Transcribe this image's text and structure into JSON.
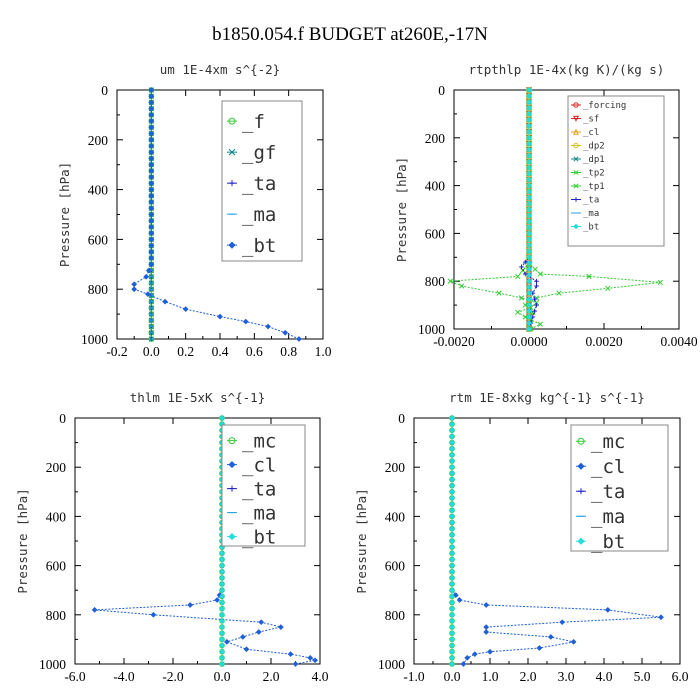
{
  "figure_title": "b1850.054.f  BUDGET at260E,-17N",
  "colors": {
    "green": "#33cc33",
    "teal": "#118888",
    "blue": "#1f5fd8",
    "navy": "#2222cc",
    "cyan": "#22a0e8",
    "aqua": "#22dddd",
    "red": "#dd2222",
    "orange": "#e8a020",
    "yellow": "#d8c020"
  },
  "chart_data": [
    {
      "type": "line",
      "title": "um  1E-4xm s^{-2}",
      "ylabel": "Pressure [hPa]",
      "xlim": [
        -0.2,
        1.0
      ],
      "ylim": [
        1000,
        0
      ],
      "xticks": [
        "-0.2",
        "0.0",
        "0.2",
        "0.4",
        "0.6",
        "0.8",
        "1.0"
      ],
      "yticks": [
        "0",
        "200",
        "400",
        "600",
        "800",
        "1000"
      ],
      "legend": "top-right",
      "series": [
        {
          "name": "_f",
          "color": "#33cc33",
          "marker": "circle",
          "x": [
            0,
            0,
            0,
            0,
            0,
            0,
            0,
            0,
            0,
            0,
            0
          ],
          "y": [
            0,
            100,
            200,
            300,
            400,
            500,
            600,
            700,
            800,
            900,
            1000
          ]
        },
        {
          "name": "_gf",
          "color": "#118888",
          "marker": "x",
          "x": [
            0,
            0,
            0,
            0,
            0,
            0,
            0,
            0,
            0,
            0,
            0
          ],
          "y": [
            0,
            100,
            200,
            300,
            400,
            500,
            600,
            700,
            800,
            900,
            1000
          ]
        },
        {
          "name": "_ta",
          "color": "#2222cc",
          "marker": "plus",
          "x": [
            0,
            0,
            0,
            0,
            0,
            0,
            0,
            0,
            0,
            0,
            0
          ],
          "y": [
            0,
            100,
            200,
            300,
            400,
            500,
            600,
            700,
            800,
            900,
            1000
          ]
        },
        {
          "name": "_ma",
          "color": "#22a0e8",
          "marker": "dash",
          "x": [
            0,
            0,
            0,
            0,
            0,
            0,
            0,
            0,
            0,
            0,
            0
          ],
          "y": [
            0,
            100,
            200,
            300,
            400,
            500,
            600,
            700,
            800,
            900,
            1000
          ]
        },
        {
          "name": "_bt",
          "color": "#1f5fd8",
          "marker": "diamond",
          "x": [
            0,
            0,
            0,
            0,
            0,
            -0.03,
            -0.1,
            -0.1,
            -0.02,
            0.08,
            0.2,
            0.4,
            0.55,
            0.68,
            0.78,
            0.86
          ],
          "y": [
            0,
            200,
            400,
            600,
            700,
            750,
            780,
            800,
            820,
            850,
            880,
            910,
            930,
            950,
            975,
            1000
          ]
        }
      ]
    },
    {
      "type": "line",
      "title": "rtpthlp  1E-4x(kg K)/(kg s)",
      "ylabel": "Pressure [hPa]",
      "xlim": [
        -0.002,
        0.004
      ],
      "ylim": [
        1000,
        0
      ],
      "xticks": [
        "-0.0020",
        "0.0000",
        "0.0020",
        "0.0040"
      ],
      "yticks": [
        "0",
        "200",
        "400",
        "600",
        "800",
        "1000"
      ],
      "legend": "top-right",
      "series": [
        {
          "name": "_forcing",
          "color": "#dd2222",
          "marker": "circle",
          "x": [
            0,
            0,
            0,
            0,
            0,
            0,
            0,
            0,
            0,
            0,
            0
          ],
          "y": [
            0,
            100,
            200,
            300,
            400,
            500,
            600,
            700,
            800,
            900,
            1000
          ]
        },
        {
          "name": "_sf",
          "color": "#dd2222",
          "marker": "triangle-down",
          "x": [
            0,
            0,
            0,
            0,
            0,
            0,
            0,
            0,
            0,
            0,
            0
          ],
          "y": [
            0,
            100,
            200,
            300,
            400,
            500,
            600,
            700,
            800,
            900,
            1000
          ]
        },
        {
          "name": "_cl",
          "color": "#e8a020",
          "marker": "triangle",
          "x": [
            0,
            0,
            0,
            0,
            0,
            0,
            0,
            0,
            0,
            0,
            0
          ],
          "y": [
            0,
            100,
            200,
            300,
            400,
            500,
            600,
            700,
            800,
            900,
            1000
          ]
        },
        {
          "name": "_dp2",
          "color": "#d8c020",
          "marker": "circle",
          "x": [
            0,
            0,
            0,
            0,
            0,
            0,
            0,
            0,
            0,
            0,
            0
          ],
          "y": [
            0,
            100,
            200,
            300,
            400,
            500,
            600,
            700,
            800,
            900,
            1000
          ]
        },
        {
          "name": "_dp1",
          "color": "#118888",
          "marker": "x",
          "x": [
            0,
            0,
            0,
            0,
            0,
            0,
            0,
            0,
            0,
            0,
            0
          ],
          "y": [
            0,
            100,
            200,
            300,
            400,
            500,
            600,
            700,
            800,
            900,
            1000
          ]
        },
        {
          "name": "_tp2",
          "color": "#33cc33",
          "marker": "x",
          "x": [
            0,
            0,
            0,
            0,
            0,
            -3e-05,
            -0.0003,
            -0.0021,
            -0.0018,
            -0.0008,
            -0.0002,
            0.0002,
            5e-05,
            -0.0003,
            -0.0001,
            0.0003,
            5e-05
          ],
          "y": [
            0,
            200,
            400,
            600,
            700,
            730,
            780,
            800,
            820,
            850,
            870,
            890,
            910,
            930,
            950,
            980,
            1000
          ]
        },
        {
          "name": "_tp1",
          "color": "#33cc33",
          "marker": "x",
          "x": [
            0,
            0,
            0,
            0,
            0,
            3e-05,
            0.0003,
            0.0016,
            0.0035,
            0.0021,
            0.0008,
            0.0002,
            -0.0001,
            0.0001,
            5e-05,
            0
          ],
          "y": [
            0,
            200,
            400,
            600,
            700,
            730,
            770,
            780,
            805,
            830,
            850,
            870,
            900,
            930,
            960,
            1000
          ]
        },
        {
          "name": "_ta",
          "color": "#2222cc",
          "marker": "plus",
          "x": [
            0,
            0,
            0,
            0,
            0,
            -0.0002,
            -0.0001,
            0.0002,
            0.0002,
            0.0001,
            0.0002,
            0.0001,
            0
          ],
          "y": [
            0,
            200,
            400,
            600,
            700,
            740,
            770,
            800,
            820,
            850,
            900,
            950,
            1000
          ]
        },
        {
          "name": "_ma",
          "color": "#22a0e8",
          "marker": "dash",
          "x": [
            0,
            0,
            0,
            0,
            0,
            0,
            0,
            0,
            0,
            0,
            0
          ],
          "y": [
            0,
            100,
            200,
            300,
            400,
            500,
            600,
            700,
            800,
            900,
            1000
          ]
        },
        {
          "name": "_bt",
          "color": "#22dddd",
          "marker": "diamond",
          "x": [
            0,
            0,
            0,
            0,
            0,
            0,
            0,
            0,
            0,
            0,
            0
          ],
          "y": [
            0,
            100,
            200,
            300,
            400,
            500,
            600,
            700,
            800,
            900,
            1000
          ]
        }
      ]
    },
    {
      "type": "line",
      "title": "thlm  1E-5xK s^{-1}",
      "ylabel": "Pressure [hPa]",
      "xlim": [
        -6.0,
        4.0
      ],
      "ylim": [
        1000,
        0
      ],
      "xticks": [
        "-6.0",
        "-4.0",
        "-2.0",
        "0.0",
        "2.0",
        "4.0"
      ],
      "yticks": [
        "0",
        "200",
        "400",
        "600",
        "800",
        "1000"
      ],
      "legend": "top-right",
      "series": [
        {
          "name": "_mc",
          "color": "#33cc33",
          "marker": "circle",
          "x": [
            0,
            0,
            0,
            0,
            0,
            0,
            0,
            0,
            0,
            0,
            0
          ],
          "y": [
            0,
            100,
            200,
            300,
            400,
            500,
            600,
            700,
            800,
            900,
            1000
          ]
        },
        {
          "name": "_cl",
          "color": "#1f5fd8",
          "marker": "diamond",
          "x": [
            0,
            0,
            0,
            0,
            0,
            -0.2,
            -1.3,
            -5.2,
            -2.8,
            1.6,
            2.4,
            1.5,
            0.2,
            1.0,
            2.8,
            3.6,
            3.8,
            3.0
          ],
          "y": [
            0,
            200,
            400,
            600,
            700,
            740,
            760,
            780,
            800,
            830,
            850,
            870,
            910,
            940,
            960,
            975,
            985,
            1000
          ]
        },
        {
          "name": "_ta",
          "color": "#2222cc",
          "marker": "plus",
          "x": [
            0,
            0,
            0,
            0,
            0,
            0,
            0,
            0,
            0,
            0,
            0
          ],
          "y": [
            0,
            100,
            200,
            300,
            400,
            500,
            600,
            700,
            800,
            900,
            1000
          ]
        },
        {
          "name": "_ma",
          "color": "#22a0e8",
          "marker": "dash",
          "x": [
            0,
            0,
            0,
            0,
            0,
            0,
            0,
            0,
            0,
            0,
            0
          ],
          "y": [
            0,
            100,
            200,
            300,
            400,
            500,
            600,
            700,
            800,
            900,
            1000
          ]
        },
        {
          "name": "_bt",
          "color": "#22dddd",
          "marker": "diamond",
          "x": [
            0,
            0,
            0,
            0,
            0,
            0,
            0,
            0,
            0,
            0,
            0
          ],
          "y": [
            0,
            100,
            200,
            300,
            400,
            500,
            600,
            700,
            800,
            900,
            1000
          ]
        }
      ]
    },
    {
      "type": "line",
      "title": "rtm  1E-8xkg kg^{-1} s^{-1}",
      "ylabel": "Pressure [hPa]",
      "xlim": [
        -1.0,
        6.0
      ],
      "ylim": [
        1000,
        0
      ],
      "xticks": [
        "-1.0",
        "0.0",
        "1.0",
        "2.0",
        "3.0",
        "4.0",
        "5.0",
        "6.0"
      ],
      "yticks": [
        "0",
        "200",
        "400",
        "600",
        "800",
        "1000"
      ],
      "legend": "top-right",
      "series": [
        {
          "name": "_mc",
          "color": "#33cc33",
          "marker": "circle",
          "x": [
            0,
            0,
            0,
            0,
            0,
            0,
            0,
            0,
            0,
            0,
            0
          ],
          "y": [
            0,
            100,
            200,
            300,
            400,
            500,
            600,
            700,
            800,
            900,
            1000
          ]
        },
        {
          "name": "_cl",
          "color": "#1f5fd8",
          "marker": "diamond",
          "x": [
            0,
            0,
            0,
            0,
            0,
            0.2,
            0.9,
            4.1,
            5.5,
            2.9,
            0.9,
            0.9,
            2.6,
            3.2,
            2.3,
            1.0,
            0.6,
            0.4,
            0.3
          ],
          "y": [
            0,
            200,
            400,
            600,
            700,
            740,
            760,
            780,
            810,
            830,
            850,
            870,
            890,
            910,
            935,
            950,
            960,
            975,
            1000
          ]
        },
        {
          "name": "_ta",
          "color": "#2222cc",
          "marker": "plus",
          "x": [
            0,
            0,
            0,
            0,
            0,
            0,
            0,
            0,
            0,
            0,
            0
          ],
          "y": [
            0,
            100,
            200,
            300,
            400,
            500,
            600,
            700,
            800,
            900,
            1000
          ]
        },
        {
          "name": "_ma",
          "color": "#22a0e8",
          "marker": "dash",
          "x": [
            0,
            0,
            0,
            0,
            0,
            0,
            0,
            0,
            0,
            0,
            0
          ],
          "y": [
            0,
            100,
            200,
            300,
            400,
            500,
            600,
            700,
            800,
            900,
            1000
          ]
        },
        {
          "name": "_bt",
          "color": "#22dddd",
          "marker": "diamond",
          "x": [
            0,
            0,
            0,
            0,
            0,
            0,
            0,
            0,
            0,
            0,
            0
          ],
          "y": [
            0,
            100,
            200,
            300,
            400,
            500,
            600,
            700,
            800,
            900,
            1000
          ]
        }
      ]
    }
  ]
}
